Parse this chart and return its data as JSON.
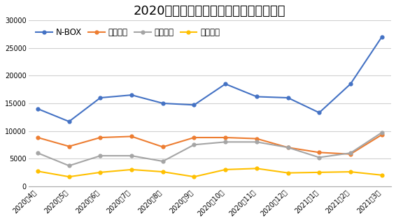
{
  "title": "2020事業年度人気ホンダ車販売台数推移",
  "x_labels": [
    "2020年4月",
    "2020年5月",
    "2020年6月",
    "2020年7月",
    "2020年8月",
    "2020年9月",
    "2020年10月",
    "2020年11月",
    "2020年12月",
    "2021年1月",
    "2021年2月",
    "2021年3月"
  ],
  "series": [
    {
      "name": "N-BOX",
      "color": "#4472C4",
      "marker": "o",
      "values": [
        14000,
        11700,
        16000,
        16500,
        15000,
        14700,
        18500,
        16200,
        16000,
        13300,
        18500,
        27000
      ]
    },
    {
      "name": "フィット",
      "color": "#ED7D31",
      "marker": "o",
      "values": [
        8800,
        7200,
        8800,
        9000,
        7100,
        8800,
        8800,
        8600,
        7000,
        6100,
        5800,
        9300
      ]
    },
    {
      "name": "フリード",
      "color": "#A5A5A5",
      "marker": "o",
      "values": [
        6000,
        3700,
        5500,
        5500,
        4500,
        7500,
        8000,
        8000,
        7000,
        5200,
        6000,
        9700
      ]
    },
    {
      "name": "ヴェゼル",
      "color": "#FFC000",
      "marker": "o",
      "values": [
        2700,
        1700,
        2500,
        3000,
        2600,
        1700,
        3000,
        3200,
        2400,
        2500,
        2600,
        2000
      ]
    }
  ],
  "ylim": [
    0,
    30000
  ],
  "yticks": [
    0,
    5000,
    10000,
    15000,
    20000,
    25000,
    30000
  ],
  "background_color": "#ffffff",
  "grid_color": "#d0d0d0",
  "title_fontsize": 13,
  "legend_fontsize": 8.5,
  "tick_fontsize": 7
}
